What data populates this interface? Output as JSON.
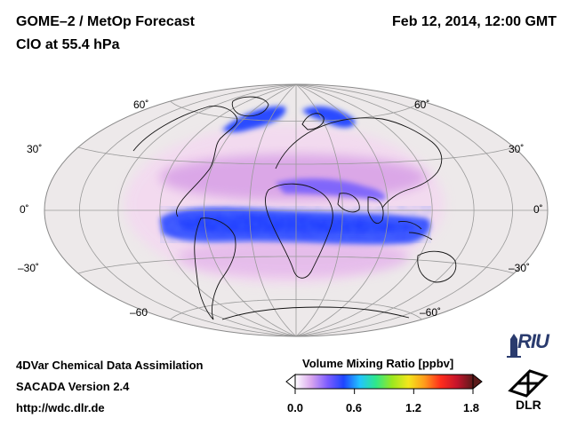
{
  "header": {
    "title": "GOME–2 / MetOp Forecast",
    "subtitle": "ClO at 55.4 hPa",
    "date": "Feb 12, 2014, 12:00 GMT"
  },
  "map": {
    "projection": "Hammer-Aitoff (global)",
    "lat_labels_left": [
      "60˚",
      "30˚",
      "0˚",
      "–30˚",
      "–60"
    ],
    "lat_labels_right": [
      "60˚",
      "30˚",
      "0˚",
      "–30˚",
      "–60˚"
    ],
    "colors": {
      "ocean": "#ede9ea",
      "graticule": "#9a9a9a",
      "coast": "#111111",
      "low": "#f3d9f0",
      "mid": "#d79fe6",
      "high": "#3b52ff",
      "peak": "#1c3bff"
    }
  },
  "colorbar": {
    "title": "Volume Mixing Ratio [ppbv]",
    "ticks": [
      "0.0",
      "0.6",
      "1.2",
      "1.8"
    ],
    "range": [
      0.0,
      1.8
    ],
    "colors": [
      "#ffffff",
      "#d9a6ee",
      "#7d5cff",
      "#1e45ff",
      "#22c5ff",
      "#2ee88a",
      "#9be81f",
      "#f3e71d",
      "#ff9b1c",
      "#ff2d1c",
      "#c5142b",
      "#5b1a1a"
    ]
  },
  "footer": {
    "line1": "4DVar Chemical Data Assimilation",
    "line2": "SACADA Version 2.4",
    "line3": "http://wdc.dlr.de"
  },
  "logos": {
    "riu_text": "RIU",
    "dlr_text": "DLR"
  }
}
